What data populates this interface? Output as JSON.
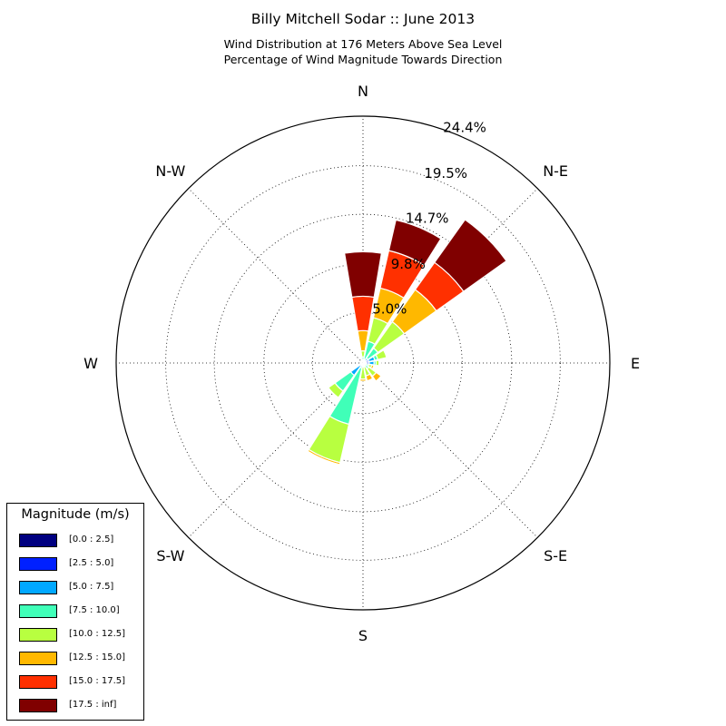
{
  "header": {
    "title": "Billy Mitchell Sodar :: June 2013",
    "subtitle_line1": "Wind Distribution at 176 Meters Above Sea Level",
    "subtitle_line2": "Percentage of Wind Magnitude Towards Direction"
  },
  "chart_data": {
    "type": "windrose",
    "title": "Billy Mitchell Sodar :: June 2013",
    "subtitle": "Wind Distribution at 176 Meters Above Sea Level / Percentage of Wind Magnitude Towards Direction",
    "direction_labels": [
      "N",
      "N-E",
      "E",
      "S-E",
      "S",
      "S-W",
      "W",
      "N-W"
    ],
    "radial_ticks": [
      5.0,
      9.8,
      14.7,
      19.5,
      24.4
    ],
    "radial_tick_labels": [
      "5.0%",
      "9.8%",
      "14.7%",
      "19.5%",
      "24.4%"
    ],
    "r_max": 24.4,
    "grid": true,
    "legend": {
      "title": "Magnitude (m/s)",
      "placement": "bottom-left",
      "bins": [
        "[0.0 : 2.5]",
        "[2.5 : 5.0]",
        "[5.0 : 7.5]",
        "[7.5 : 10.0]",
        "[10.0 : 12.5]",
        "[12.5 : 15.0]",
        "[15.0 : 17.5]",
        "[17.5 : inf]"
      ],
      "colors": [
        "#000080",
        "#0020ff",
        "#00a8ff",
        "#40ffb8",
        "#b8ff40",
        "#ffb800",
        "#ff3000",
        "#800000"
      ]
    },
    "sector_width_deg": 22.5,
    "sectors": [
      {
        "dir": 0,
        "cumulative": [
          0,
          0,
          0.2,
          0.6,
          1.2,
          3.2,
          6.6,
          11.0
        ]
      },
      {
        "dir": 22.5,
        "cumulative": [
          0,
          0,
          0.4,
          2.2,
          4.6,
          7.6,
          11.4,
          14.5
        ]
      },
      {
        "dir": 45,
        "cumulative": [
          0,
          0,
          0.6,
          1.8,
          5.0,
          8.9,
          12.2,
          17.4
        ]
      },
      {
        "dir": 45,
        "cumulative": [
          0,
          0,
          0,
          0,
          0,
          0,
          0,
          0
        ]
      },
      {
        "dir": 67.5,
        "cumulative": [
          0.1,
          0.6,
          1.2,
          1.5,
          2.4,
          2.5,
          2.6,
          2.7
        ]
      },
      {
        "dir": 90,
        "cumulative": [
          0.1,
          0.6,
          1.1,
          1.3,
          1.6,
          1.7,
          1.7,
          1.8
        ]
      },
      {
        "dir": 112.5,
        "cumulative": [
          0,
          0,
          0.3,
          0.6,
          0.9,
          1.1,
          1.1,
          1.1
        ]
      },
      {
        "dir": 135,
        "cumulative": [
          0,
          0,
          0.3,
          0.7,
          1.6,
          2.2,
          2.2,
          2.2
        ]
      },
      {
        "dir": 157.5,
        "cumulative": [
          0,
          0,
          0.2,
          0.4,
          1.3,
          1.8,
          1.8,
          1.8
        ]
      },
      {
        "dir": 180,
        "cumulative": [
          0,
          0,
          0,
          0.4,
          1.6,
          1.8,
          1.8,
          1.8
        ]
      },
      {
        "dir": 202.5,
        "cumulative": [
          0,
          0,
          0.5,
          6.2,
          10.1,
          10.3,
          10.4,
          10.4
        ]
      },
      {
        "dir": 225,
        "cumulative": [
          0,
          0.3,
          1.5,
          3.4,
          4.2,
          4.2,
          4.2,
          4.2
        ]
      },
      {
        "dir": 247.5,
        "cumulative": [
          0,
          0.2,
          0.2,
          0.2,
          0.2,
          0.2,
          0.2,
          0.2
        ]
      },
      {
        "dir": 270,
        "cumulative": [
          0,
          0,
          0,
          0,
          0,
          0,
          0,
          0
        ]
      },
      {
        "dir": 292.5,
        "cumulative": [
          0,
          0,
          0,
          0,
          0,
          0,
          0,
          0
        ]
      },
      {
        "dir": 315,
        "cumulative": [
          0,
          0,
          0,
          0,
          0,
          0,
          0,
          0
        ]
      },
      {
        "dir": 337.5,
        "cumulative": [
          0,
          0,
          0,
          0,
          0,
          0,
          0,
          0
        ]
      }
    ]
  }
}
